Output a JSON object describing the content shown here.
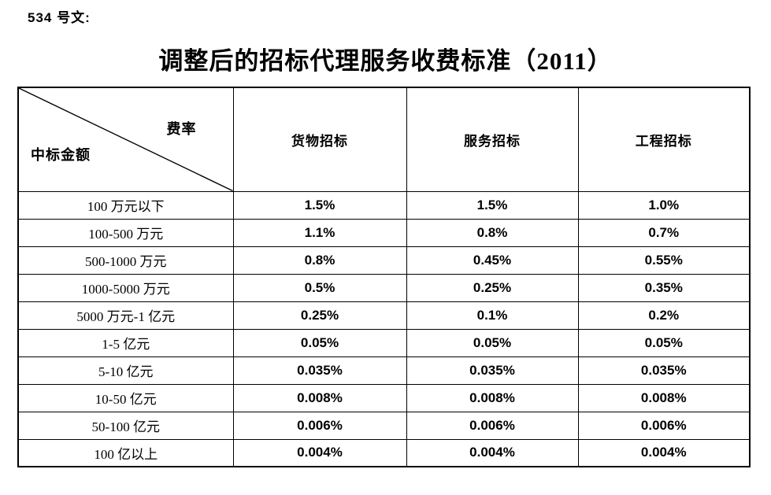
{
  "doc": {
    "doc_number": "534 号文:",
    "title": "调整后的招标代理服务收费标准（2011）"
  },
  "table": {
    "corner_top_right": "费率",
    "corner_bottom_left": "中标金额",
    "columns": [
      "货物招标",
      "服务招标",
      "工程招标"
    ],
    "rows": [
      {
        "label": "100 万元以下",
        "values": [
          "1.5%",
          "1.5%",
          "1.0%"
        ]
      },
      {
        "label": "100-500 万元",
        "values": [
          "1.1%",
          "0.8%",
          "0.7%"
        ]
      },
      {
        "label": "500-1000 万元",
        "values": [
          "0.8%",
          "0.45%",
          "0.55%"
        ]
      },
      {
        "label": "1000-5000 万元",
        "values": [
          "0.5%",
          "0.25%",
          "0.35%"
        ]
      },
      {
        "label": "5000 万元-1 亿元",
        "values": [
          "0.25%",
          "0.1%",
          "0.2%"
        ]
      },
      {
        "label": "1-5 亿元",
        "values": [
          "0.05%",
          "0.05%",
          "0.05%"
        ]
      },
      {
        "label": "5-10 亿元",
        "values": [
          "0.035%",
          "0.035%",
          "0.035%"
        ]
      },
      {
        "label": "10-50 亿元",
        "values": [
          "0.008%",
          "0.008%",
          "0.008%"
        ]
      },
      {
        "label": "50-100 亿元",
        "values": [
          "0.006%",
          "0.006%",
          "0.006%"
        ]
      },
      {
        "label": "100 亿以上",
        "values": [
          "0.004%",
          "0.004%",
          "0.004%"
        ]
      }
    ]
  },
  "colors": {
    "text": "#000000",
    "background": "#ffffff",
    "border": "#000000"
  }
}
